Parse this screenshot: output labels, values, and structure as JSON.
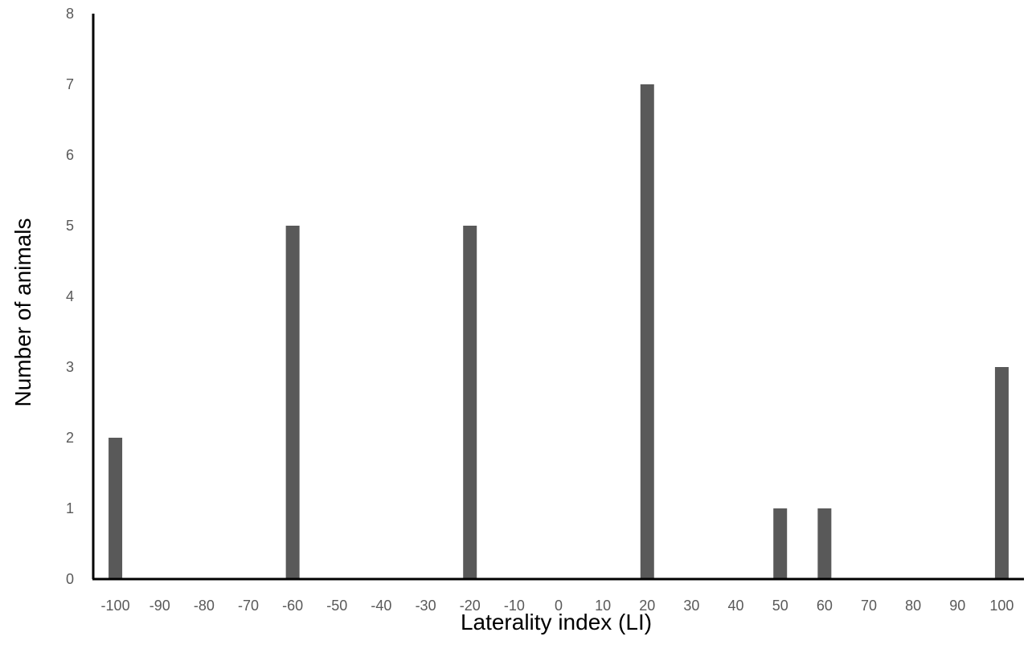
{
  "chart_data": {
    "type": "bar",
    "title": "",
    "xlabel": "Laterality index (LI)",
    "ylabel": "Number of animals",
    "categories": [
      "-100",
      "-90",
      "-80",
      "-70",
      "-60",
      "-50",
      "-40",
      "-30",
      "-20",
      "-10",
      "0",
      "10",
      "20",
      "30",
      "40",
      "50",
      "60",
      "70",
      "80",
      "90",
      "100"
    ],
    "values": [
      2,
      0,
      0,
      0,
      5,
      0,
      0,
      0,
      5,
      0,
      0,
      0,
      7,
      0,
      0,
      1,
      1,
      0,
      0,
      0,
      3
    ],
    "ylim": [
      0,
      8
    ],
    "yticks": [
      "0",
      "1",
      "2",
      "3",
      "4",
      "5",
      "6",
      "7",
      "8"
    ],
    "grid": false,
    "colors": {
      "bar": "#595959",
      "axis": "#000000",
      "tick_text": "#595959"
    }
  }
}
